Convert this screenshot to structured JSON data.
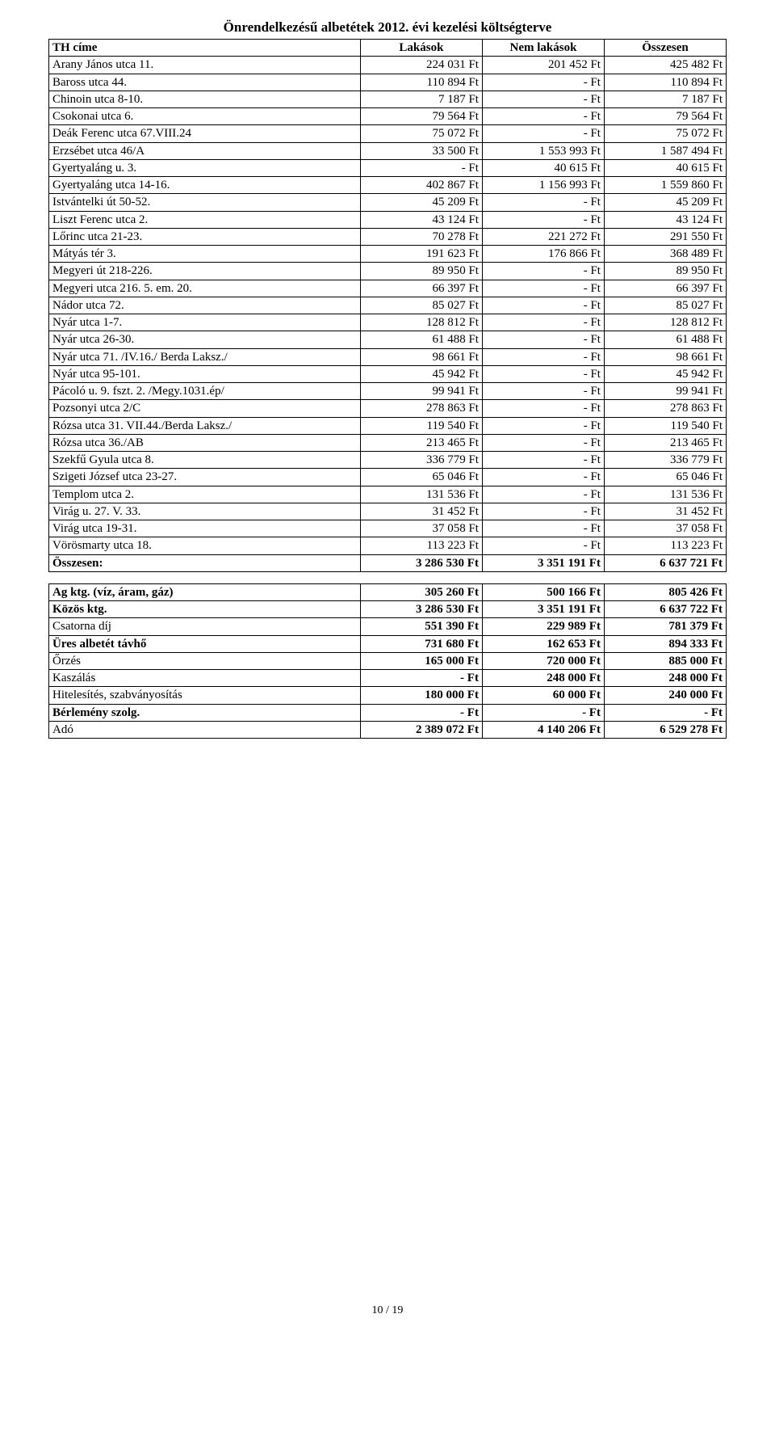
{
  "title": "Önrendelkezésű albetétek 2012. évi kezelési költségterve",
  "columns": [
    "TH címe",
    "Lakások",
    "Nem lakások",
    "Összesen"
  ],
  "col_widths_pct": [
    46,
    18,
    18,
    18
  ],
  "colors": {
    "background": "#ffffff",
    "text": "#000000",
    "border": "#000000"
  },
  "font": {
    "family": "Times New Roman",
    "size_pt": 11,
    "header_weight": "bold"
  },
  "rows": [
    [
      "Arany János utca 11.",
      "224 031 Ft",
      "201 452 Ft",
      "425 482 Ft"
    ],
    [
      "Baross utca 44.",
      "110 894 Ft",
      "- Ft",
      "110 894 Ft"
    ],
    [
      "Chinoin utca 8-10.",
      "7 187 Ft",
      "- Ft",
      "7 187 Ft"
    ],
    [
      "Csokonai utca 6.",
      "79 564 Ft",
      "- Ft",
      "79 564 Ft"
    ],
    [
      "Deák Ferenc utca 67.VIII.24",
      "75 072 Ft",
      "- Ft",
      "75 072 Ft"
    ],
    [
      "Erzsébet utca 46/A",
      "33 500 Ft",
      "1 553 993 Ft",
      "1 587 494 Ft"
    ],
    [
      "Gyertyaláng u. 3.",
      "- Ft",
      "40 615 Ft",
      "40 615 Ft"
    ],
    [
      "Gyertyaláng utca 14-16.",
      "402 867 Ft",
      "1 156 993 Ft",
      "1 559 860 Ft"
    ],
    [
      "Istvántelki út 50-52.",
      "45 209 Ft",
      "- Ft",
      "45 209 Ft"
    ],
    [
      "Liszt Ferenc utca 2.",
      "43 124 Ft",
      "- Ft",
      "43 124 Ft"
    ],
    [
      "Lőrinc utca 21-23.",
      "70 278 Ft",
      "221 272 Ft",
      "291 550 Ft"
    ],
    [
      "Mátyás tér 3.",
      "191 623 Ft",
      "176 866 Ft",
      "368 489 Ft"
    ],
    [
      "Megyeri út 218-226.",
      "89 950 Ft",
      "- Ft",
      "89 950 Ft"
    ],
    [
      "Megyeri utca 216. 5. em. 20.",
      "66 397 Ft",
      "- Ft",
      "66 397 Ft"
    ],
    [
      "Nádor utca 72.",
      "85 027 Ft",
      "- Ft",
      "85 027 Ft"
    ],
    [
      "Nyár utca 1-7.",
      "128 812 Ft",
      "- Ft",
      "128 812 Ft"
    ],
    [
      "Nyár utca 26-30.",
      "61 488 Ft",
      "- Ft",
      "61 488 Ft"
    ],
    [
      "Nyár utca 71. /IV.16./ Berda Laksz./",
      "98 661 Ft",
      "- Ft",
      "98 661 Ft"
    ],
    [
      "Nyár utca 95-101.",
      "45 942 Ft",
      "- Ft",
      "45 942 Ft"
    ],
    [
      "Pácoló u. 9. fszt. 2. /Megy.1031.ép/",
      "99 941 Ft",
      "- Ft",
      "99 941 Ft"
    ],
    [
      "Pozsonyi utca 2/C",
      "278 863 Ft",
      "- Ft",
      "278 863 Ft"
    ],
    [
      "Rózsa utca 31. VII.44./Berda Laksz./",
      "119 540 Ft",
      "- Ft",
      "119 540 Ft"
    ],
    [
      "Rózsa utca 36./AB",
      "213 465 Ft",
      "- Ft",
      "213 465 Ft"
    ],
    [
      "Szekfű Gyula utca 8.",
      "336 779 Ft",
      "- Ft",
      "336 779 Ft"
    ],
    [
      "Szigeti József utca 23-27.",
      "65 046 Ft",
      "- Ft",
      "65 046 Ft"
    ],
    [
      "Templom utca 2.",
      "131 536 Ft",
      "- Ft",
      "131 536 Ft"
    ],
    [
      "Virág u. 27. V. 33.",
      "31 452 Ft",
      "- Ft",
      "31 452 Ft"
    ],
    [
      "Virág utca 19-31.",
      "37 058 Ft",
      "- Ft",
      "37 058 Ft"
    ],
    [
      "Vörösmarty utca 18.",
      "113 223 Ft",
      "- Ft",
      "113 223 Ft"
    ]
  ],
  "total_row": [
    "Összesen:",
    "3 286 530 Ft",
    "3 351 191 Ft",
    "6 637 721 Ft"
  ],
  "summary_rows": [
    [
      "Ag ktg. (víz, áram, gáz)",
      "305 260 Ft",
      "500 166 Ft",
      "805 426 Ft"
    ],
    [
      "Közös ktg.",
      "3 286 530 Ft",
      "3 351 191 Ft",
      "6 637 722 Ft"
    ],
    [
      "Csatorna díj",
      "551 390 Ft",
      "229 989 Ft",
      "781 379 Ft"
    ],
    [
      "Üres albetét távhő",
      "731 680 Ft",
      "162 653 Ft",
      "894 333 Ft"
    ],
    [
      "Őrzés",
      "165 000 Ft",
      "720 000 Ft",
      "885 000 Ft"
    ],
    [
      "Kaszálás",
      "- Ft",
      "248 000 Ft",
      "248 000 Ft"
    ],
    [
      "Hitelesítés, szabványosítás",
      "180 000 Ft",
      "60 000 Ft",
      "240 000 Ft"
    ],
    [
      "Bérlemény szolg.",
      "- Ft",
      "- Ft",
      "- Ft"
    ],
    [
      "Adó",
      "2 389 072 Ft",
      "4 140 206 Ft",
      "6 529 278 Ft"
    ]
  ],
  "summary_bold_labels": [
    true,
    true,
    false,
    true,
    false,
    false,
    false,
    true,
    false
  ],
  "page_footer": "10 / 19"
}
